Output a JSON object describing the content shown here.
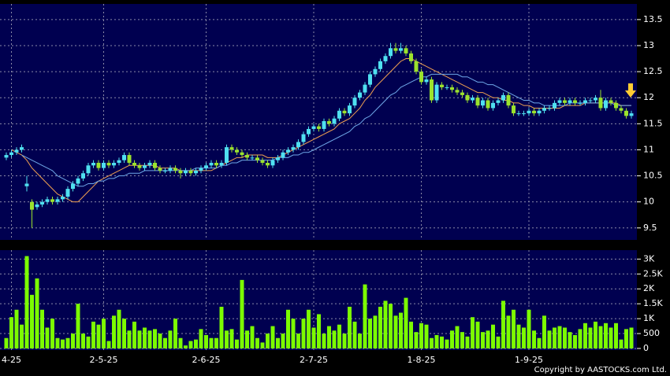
{
  "chart_data": [
    {
      "type": "candlestick",
      "up_color": "#4fe0f0",
      "down_color": "#9be22d",
      "grid": true,
      "ylim": [
        9.27,
        13.8
      ],
      "yticks": [
        9.5,
        10,
        10.5,
        11,
        11.5,
        12,
        12.5,
        13,
        13.5
      ],
      "categories": [
        null,
        "4-25",
        null,
        null,
        null,
        null,
        null,
        null,
        null,
        null,
        null,
        null,
        null,
        null,
        null,
        null,
        null,
        null,
        null,
        "2-5-25",
        null,
        null,
        null,
        null,
        null,
        null,
        null,
        null,
        null,
        null,
        null,
        null,
        null,
        null,
        null,
        null,
        null,
        null,
        null,
        "2-6-25",
        null,
        null,
        null,
        null,
        null,
        null,
        null,
        null,
        null,
        null,
        null,
        null,
        null,
        null,
        null,
        null,
        null,
        null,
        null,
        null,
        "2-7-25",
        null,
        null,
        null,
        null,
        null,
        null,
        null,
        null,
        null,
        null,
        null,
        null,
        null,
        null,
        null,
        null,
        null,
        null,
        null,
        null,
        "1-8-25",
        null,
        null,
        null,
        null,
        null,
        null,
        null,
        null,
        null,
        null,
        null,
        null,
        null,
        null,
        null,
        null,
        null,
        null,
        null,
        null,
        "1-9-25",
        null,
        null,
        null,
        null,
        null,
        null,
        null,
        null,
        null,
        null,
        null,
        null,
        null,
        null,
        null,
        null,
        null,
        null,
        null,
        null
      ],
      "ohlc": [
        [
          10.85,
          10.95,
          10.8,
          10.9
        ],
        [
          10.9,
          11.0,
          10.85,
          10.95
        ],
        [
          10.95,
          11.05,
          10.9,
          11.0
        ],
        [
          11.0,
          11.1,
          10.95,
          11.05
        ],
        [
          10.3,
          10.5,
          10.2,
          10.35
        ],
        [
          10.0,
          10.05,
          9.5,
          9.85
        ],
        [
          9.9,
          10.0,
          9.85,
          9.95
        ],
        [
          9.95,
          10.05,
          9.9,
          10.0
        ],
        [
          10.0,
          10.1,
          9.95,
          10.05
        ],
        [
          10.05,
          10.1,
          9.95,
          10.0
        ],
        [
          10.0,
          10.1,
          9.95,
          10.05
        ],
        [
          10.05,
          10.15,
          10.0,
          10.1
        ],
        [
          10.1,
          10.3,
          10.05,
          10.25
        ],
        [
          10.25,
          10.4,
          10.2,
          10.35
        ],
        [
          10.35,
          10.5,
          10.3,
          10.45
        ],
        [
          10.45,
          10.6,
          10.4,
          10.55
        ],
        [
          10.55,
          10.75,
          10.5,
          10.7
        ],
        [
          10.7,
          10.8,
          10.65,
          10.75
        ],
        [
          10.75,
          10.8,
          10.6,
          10.65
        ],
        [
          10.65,
          10.8,
          10.6,
          10.75
        ],
        [
          10.75,
          10.8,
          10.65,
          10.7
        ],
        [
          10.7,
          10.8,
          10.65,
          10.75
        ],
        [
          10.75,
          10.85,
          10.7,
          10.8
        ],
        [
          10.8,
          10.95,
          10.75,
          10.9
        ],
        [
          10.9,
          10.95,
          10.7,
          10.75
        ],
        [
          10.75,
          10.8,
          10.65,
          10.7
        ],
        [
          10.7,
          10.75,
          10.6,
          10.65
        ],
        [
          10.65,
          10.75,
          10.6,
          10.7
        ],
        [
          10.7,
          10.8,
          10.65,
          10.75
        ],
        [
          10.75,
          10.8,
          10.6,
          10.65
        ],
        [
          10.65,
          10.7,
          10.55,
          10.6
        ],
        [
          10.6,
          10.65,
          10.55,
          10.6
        ],
        [
          10.6,
          10.7,
          10.55,
          10.65
        ],
        [
          10.65,
          10.7,
          10.55,
          10.6
        ],
        [
          10.6,
          10.65,
          10.45,
          10.55
        ],
        [
          10.55,
          10.65,
          10.5,
          10.6
        ],
        [
          10.6,
          10.65,
          10.5,
          10.55
        ],
        [
          10.55,
          10.65,
          10.5,
          10.6
        ],
        [
          10.6,
          10.7,
          10.55,
          10.65
        ],
        [
          10.65,
          10.75,
          10.6,
          10.7
        ],
        [
          10.7,
          10.8,
          10.65,
          10.75
        ],
        [
          10.75,
          10.8,
          10.65,
          10.7
        ],
        [
          10.7,
          10.8,
          10.65,
          10.75
        ],
        [
          10.75,
          11.1,
          10.7,
          11.05
        ],
        [
          11.05,
          11.1,
          10.95,
          11.0
        ],
        [
          11.0,
          11.05,
          10.9,
          10.95
        ],
        [
          10.95,
          11.0,
          10.85,
          10.9
        ],
        [
          10.9,
          10.95,
          10.8,
          10.85
        ],
        [
          10.85,
          10.9,
          10.8,
          10.85
        ],
        [
          10.85,
          10.9,
          10.75,
          10.8
        ],
        [
          10.8,
          10.85,
          10.7,
          10.75
        ],
        [
          10.75,
          10.8,
          10.65,
          10.7
        ],
        [
          10.7,
          10.85,
          10.65,
          10.8
        ],
        [
          10.8,
          10.9,
          10.75,
          10.85
        ],
        [
          10.85,
          11.0,
          10.8,
          10.95
        ],
        [
          10.95,
          11.05,
          10.9,
          11.0
        ],
        [
          11.0,
          11.1,
          10.95,
          11.05
        ],
        [
          11.05,
          11.2,
          11.0,
          11.15
        ],
        [
          11.15,
          11.35,
          11.1,
          11.3
        ],
        [
          11.3,
          11.45,
          11.25,
          11.4
        ],
        [
          11.4,
          11.5,
          11.35,
          11.45
        ],
        [
          11.45,
          11.5,
          11.35,
          11.4
        ],
        [
          11.4,
          11.6,
          11.35,
          11.55
        ],
        [
          11.55,
          11.6,
          11.45,
          11.5
        ],
        [
          11.5,
          11.65,
          11.45,
          11.6
        ],
        [
          11.6,
          11.8,
          11.55,
          11.75
        ],
        [
          11.75,
          11.8,
          11.65,
          11.7
        ],
        [
          11.7,
          11.9,
          11.65,
          11.85
        ],
        [
          11.85,
          12.05,
          11.8,
          12.0
        ],
        [
          12.0,
          12.15,
          11.95,
          12.1
        ],
        [
          12.1,
          12.3,
          12.05,
          12.25
        ],
        [
          12.25,
          12.5,
          12.2,
          12.45
        ],
        [
          12.45,
          12.6,
          12.4,
          12.55
        ],
        [
          12.55,
          12.75,
          12.5,
          12.7
        ],
        [
          12.7,
          12.85,
          12.65,
          12.8
        ],
        [
          12.8,
          13.05,
          12.75,
          12.95
        ],
        [
          12.95,
          13.05,
          12.85,
          12.9
        ],
        [
          12.9,
          13.05,
          12.85,
          12.95
        ],
        [
          12.95,
          13.0,
          12.8,
          12.85
        ],
        [
          12.85,
          12.9,
          12.65,
          12.7
        ],
        [
          12.7,
          12.75,
          12.45,
          12.5
        ],
        [
          12.5,
          12.55,
          12.25,
          12.3
        ],
        [
          12.3,
          12.4,
          12.25,
          12.35
        ],
        [
          12.35,
          12.4,
          11.9,
          11.95
        ],
        [
          11.95,
          12.3,
          11.9,
          12.25
        ],
        [
          12.25,
          12.3,
          12.15,
          12.2
        ],
        [
          12.2,
          12.25,
          12.15,
          12.2
        ],
        [
          12.2,
          12.25,
          12.1,
          12.15
        ],
        [
          12.15,
          12.2,
          12.05,
          12.1
        ],
        [
          12.1,
          12.15,
          12.0,
          12.05
        ],
        [
          12.05,
          12.1,
          11.9,
          11.95
        ],
        [
          11.95,
          12.05,
          11.9,
          12.0
        ],
        [
          12.0,
          12.05,
          11.8,
          11.85
        ],
        [
          11.85,
          12.0,
          11.8,
          11.95
        ],
        [
          11.95,
          12.0,
          11.75,
          11.8
        ],
        [
          11.8,
          11.95,
          11.75,
          11.9
        ],
        [
          11.9,
          12.0,
          11.85,
          11.95
        ],
        [
          11.95,
          12.1,
          11.9,
          12.05
        ],
        [
          12.05,
          12.1,
          11.8,
          11.85
        ],
        [
          11.85,
          11.9,
          11.65,
          11.7
        ],
        [
          11.7,
          11.75,
          11.65,
          11.7
        ],
        [
          11.7,
          11.75,
          11.65,
          11.7
        ],
        [
          11.7,
          11.8,
          11.65,
          11.75
        ],
        [
          11.75,
          11.8,
          11.65,
          11.7
        ],
        [
          11.7,
          11.8,
          11.65,
          11.75
        ],
        [
          11.75,
          11.85,
          11.7,
          11.8
        ],
        [
          11.8,
          11.85,
          11.75,
          11.8
        ],
        [
          11.8,
          11.95,
          11.75,
          11.9
        ],
        [
          11.9,
          12.0,
          11.85,
          11.95
        ],
        [
          11.95,
          12.0,
          11.85,
          11.9
        ],
        [
          11.9,
          12.0,
          11.85,
          11.95
        ],
        [
          11.95,
          12.0,
          11.85,
          11.9
        ],
        [
          11.9,
          11.95,
          11.85,
          11.9
        ],
        [
          11.9,
          12.0,
          11.85,
          11.95
        ],
        [
          11.95,
          12.0,
          11.9,
          11.95
        ],
        [
          11.95,
          12.05,
          11.9,
          12.0
        ],
        [
          12.0,
          12.15,
          11.75,
          11.8
        ],
        [
          11.8,
          12.0,
          11.75,
          11.95
        ],
        [
          11.95,
          12.0,
          11.85,
          11.9
        ],
        [
          11.9,
          11.95,
          11.75,
          11.8
        ],
        [
          11.8,
          11.85,
          11.7,
          11.75
        ],
        [
          11.75,
          11.8,
          11.6,
          11.65
        ],
        [
          11.65,
          11.75,
          11.6,
          11.7
        ]
      ],
      "lines": [
        {
          "color": "#f0a050",
          "values": [
            null,
            11.0,
            10.95,
            10.9,
            10.8,
            10.65,
            10.55,
            10.45,
            10.35,
            10.25,
            10.15,
            10.1,
            10.05,
            10.0,
            10.0,
            10.1,
            10.2,
            10.3,
            10.4,
            10.45,
            10.5,
            10.55,
            10.6,
            10.65,
            10.7,
            10.7,
            10.7,
            10.7,
            10.7,
            10.7,
            10.65,
            10.65,
            10.65,
            10.65,
            10.6,
            10.6,
            10.6,
            10.6,
            10.6,
            10.6,
            10.6,
            10.65,
            10.7,
            10.75,
            10.8,
            10.85,
            10.85,
            10.9,
            10.9,
            10.9,
            10.9,
            10.85,
            10.85,
            10.85,
            10.9,
            10.95,
            11.0,
            11.05,
            11.1,
            11.15,
            11.2,
            11.25,
            11.3,
            11.35,
            11.4,
            11.5,
            11.55,
            11.6,
            11.7,
            11.8,
            11.95,
            12.05,
            12.2,
            12.3,
            12.4,
            12.5,
            12.6,
            12.7,
            12.75,
            12.75,
            12.7,
            12.65,
            12.6,
            12.55,
            12.5,
            12.45,
            12.4,
            12.35,
            12.3,
            12.25,
            12.2,
            12.15,
            12.1,
            12.1,
            12.05,
            12.0,
            12.0,
            11.95,
            11.95,
            11.9,
            11.9,
            11.85,
            11.85,
            11.8,
            11.8,
            11.8,
            11.8,
            11.8,
            11.8,
            11.85,
            11.85,
            11.85,
            11.85,
            11.9,
            11.9,
            11.9,
            11.9,
            11.9,
            11.9,
            11.9,
            11.85,
            11.85,
            11.85
          ]
        },
        {
          "color": "#6fa8e8",
          "values": [
            null,
            null,
            null,
            10.9,
            10.85,
            10.8,
            10.75,
            10.7,
            10.65,
            10.6,
            10.5,
            10.45,
            10.4,
            10.35,
            10.3,
            10.3,
            10.35,
            10.35,
            10.4,
            10.4,
            10.45,
            10.45,
            10.5,
            10.5,
            10.55,
            10.55,
            10.55,
            10.6,
            10.6,
            10.6,
            10.6,
            10.6,
            10.6,
            10.6,
            10.6,
            10.6,
            10.6,
            10.65,
            10.65,
            10.65,
            10.65,
            10.65,
            10.7,
            10.7,
            10.75,
            10.75,
            10.8,
            10.8,
            10.8,
            10.8,
            10.8,
            10.8,
            10.8,
            10.85,
            10.85,
            10.85,
            10.9,
            10.9,
            10.95,
            10.95,
            11.0,
            11.05,
            11.1,
            11.15,
            11.2,
            11.25,
            11.3,
            11.35,
            11.45,
            11.5,
            11.6,
            11.65,
            11.75,
            11.85,
            11.95,
            12.05,
            12.1,
            12.2,
            12.25,
            12.3,
            12.35,
            12.4,
            12.4,
            12.45,
            12.45,
            12.45,
            12.45,
            12.45,
            12.45,
            12.4,
            12.4,
            12.35,
            12.3,
            12.3,
            12.25,
            12.25,
            12.2,
            12.15,
            12.1,
            12.05,
            12.0,
            11.95,
            11.95,
            11.9,
            11.9,
            11.85,
            11.85,
            11.85,
            11.85,
            11.85,
            11.9,
            11.9,
            11.9,
            11.9,
            11.9,
            11.9,
            11.9,
            11.9,
            11.9,
            11.85,
            11.85,
            11.85,
            11.85
          ]
        }
      ]
    },
    {
      "type": "bar",
      "color": "#7cfc00",
      "grid": true,
      "ylim": [
        0,
        3300
      ],
      "yticks": [
        0,
        500,
        {
          "value": 1000,
          "label": "1K"
        },
        {
          "value": 1500,
          "label": "1.5K"
        },
        {
          "value": 2000,
          "label": "2K"
        },
        {
          "value": 2500,
          "label": "2.5K"
        },
        {
          "value": 3000,
          "label": "3K"
        }
      ],
      "values": [
        350,
        1050,
        1300,
        800,
        3100,
        1800,
        2350,
        1300,
        700,
        1000,
        350,
        300,
        350,
        500,
        1500,
        500,
        400,
        900,
        800,
        1000,
        250,
        1100,
        1300,
        1000,
        600,
        900,
        600,
        700,
        600,
        650,
        500,
        350,
        600,
        1000,
        350,
        100,
        250,
        300,
        650,
        450,
        350,
        350,
        1400,
        600,
        650,
        300,
        2300,
        600,
        750,
        350,
        200,
        500,
        750,
        350,
        500,
        1300,
        1000,
        500,
        1000,
        1300,
        700,
        1150,
        500,
        750,
        600,
        800,
        500,
        1400,
        900,
        500,
        2150,
        1000,
        1100,
        1400,
        1600,
        1500,
        1100,
        1200,
        1700,
        900,
        550,
        850,
        800,
        350,
        450,
        400,
        300,
        600,
        750,
        550,
        400,
        1050,
        900,
        550,
        600,
        800,
        400,
        1600,
        1100,
        1300,
        800,
        700,
        1300,
        600,
        350,
        1100,
        600,
        700,
        750,
        700,
        550,
        450,
        650,
        850,
        700,
        900,
        750,
        850,
        700,
        850,
        300,
        650,
        700
      ]
    }
  ],
  "copyright": "Copyright by AASTOCKS.com Ltd."
}
